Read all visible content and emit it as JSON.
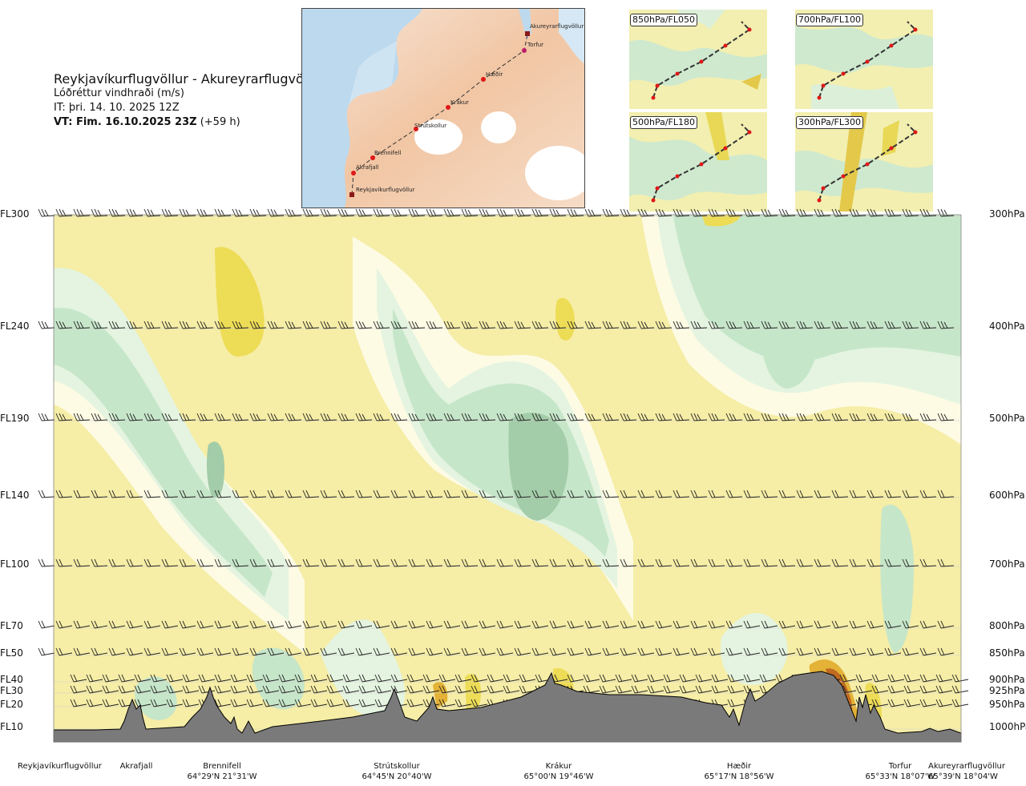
{
  "header": {
    "route": "Reykjavíkurflugvöllur - Akureyrarflugvöllur",
    "parameter": "Lóðréttur vindhraði (m/s)",
    "issue_time": "IT: þri. 14. 10. 2025 12Z",
    "valid_label": "VT: Fim. 16.10.2025 23Z",
    "valid_offset": "(+59 h)"
  },
  "route_map": {
    "waypoints": [
      "Akureyrarflugvöllur",
      "Torfur",
      "Hæðir",
      "Krákur",
      "Strútskollur",
      "Brennifell",
      "Akrafjall",
      "Reykjavíkurflugvöllur"
    ]
  },
  "mini_maps": [
    {
      "label": "850hPa/FL050"
    },
    {
      "label": "700hPa/FL100"
    },
    {
      "label": "500hPa/FL180"
    },
    {
      "label": "300hPa/FL300"
    }
  ],
  "chart_data": {
    "type": "heatmap",
    "title": "Reykjavíkurflugvöllur - Akureyrarflugvöllur",
    "colorbar_quantity": "Lóðréttur vindhraði (m/s)",
    "y_levels": [
      {
        "fl": "FL300",
        "hpa": "300hPa"
      },
      {
        "fl": "FL240",
        "hpa": "400hPa"
      },
      {
        "fl": "FL190",
        "hpa": "500hPa"
      },
      {
        "fl": "FL140",
        "hpa": "600hPa"
      },
      {
        "fl": "FL100",
        "hpa": "700hPa"
      },
      {
        "fl": "FL70",
        "hpa": "800hPa"
      },
      {
        "fl": "FL50",
        "hpa": "850hPa"
      },
      {
        "fl": "FL40",
        "hpa": "900hPa"
      },
      {
        "fl": "FL30",
        "hpa": "925hPa"
      },
      {
        "fl": "FL20",
        "hpa": "950hPa"
      },
      {
        "fl": "FL10",
        "hpa": "1000hPa"
      }
    ],
    "x_waypoints": [
      {
        "name": "Reykjavíkurflugvöllur",
        "coord": ""
      },
      {
        "name": "Akrafjall",
        "coord": ""
      },
      {
        "name": "Brennifell",
        "coord": "64°29'N 21°31'W"
      },
      {
        "name": "Strútskollur",
        "coord": "64°45'N 20°40'W"
      },
      {
        "name": "Krákur",
        "coord": "65°00'N 19°46'W"
      },
      {
        "name": "Hæðir",
        "coord": "65°17'N 18°56'W"
      },
      {
        "name": "Torfur",
        "coord": "65°33'N 18°07'W"
      },
      {
        "name": "Akureyrarflugvöllur",
        "coord": "65°39'N 18°04'W"
      }
    ],
    "colors": {
      "strong_down": "#a3cca8",
      "moderate_down": "#c6e6c9",
      "weak_down": "#e4f4e0",
      "neutral": "#fdfbe4",
      "weak_up": "#f6eda6",
      "moderate_up": "#eddc55",
      "strong_up": "#e3b236",
      "very_strong_up": "#c06a22",
      "terrain": "#7a7a7a"
    }
  }
}
